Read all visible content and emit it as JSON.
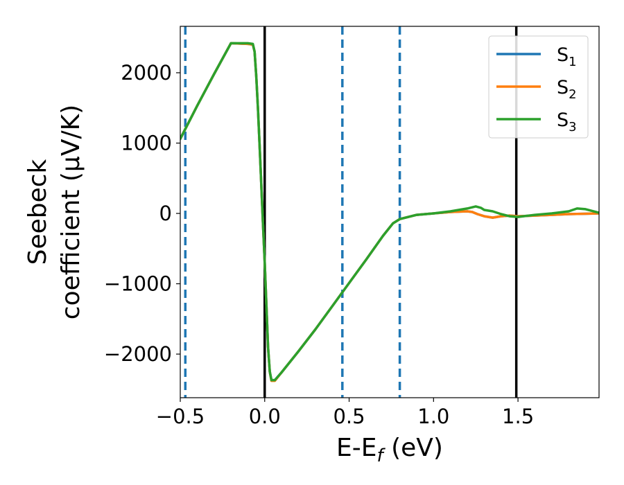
{
  "chart_data": {
    "type": "line",
    "xlabel_main": "E-E",
    "xlabel_sub": "f",
    "xlabel_unit": " (eV)",
    "ylabel_line1": "Seebeck",
    "ylabel_line2": "coefficient  (μV/K)",
    "xlim": [
      -0.5,
      1.98
    ],
    "ylim": [
      -2620,
      2660
    ],
    "x_ticks": [
      -0.5,
      0.0,
      0.5,
      1.0,
      1.5
    ],
    "x_tick_labels": [
      "−0.5",
      "0.0",
      "0.5",
      "1.0",
      "1.5"
    ],
    "y_ticks": [
      2000,
      1000,
      0,
      -1000,
      -2000
    ],
    "y_tick_labels": [
      "2000",
      "1000",
      "0",
      "−1000",
      "−2000"
    ],
    "vertical_lines": [
      {
        "x": 0.0,
        "style": "solid",
        "color": "#000000"
      },
      {
        "x": 1.49,
        "style": "solid",
        "color": "#000000"
      },
      {
        "x": -0.47,
        "style": "dashed",
        "color": "#1f77b4"
      },
      {
        "x": 0.46,
        "style": "dashed",
        "color": "#1f77b4"
      },
      {
        "x": 0.8,
        "style": "dashed",
        "color": "#1f77b4"
      }
    ],
    "legend_position": "top-right",
    "series": [
      {
        "name": "S",
        "sub": "1",
        "color": "#1f77b4",
        "points": [
          [
            -0.5,
            1060
          ],
          [
            -0.4,
            1530
          ],
          [
            -0.3,
            1980
          ],
          [
            -0.2,
            2420
          ],
          [
            -0.1,
            2410
          ],
          [
            -0.07,
            2400
          ],
          [
            -0.06,
            2300
          ],
          [
            -0.05,
            1950
          ],
          [
            -0.04,
            1500
          ],
          [
            -0.03,
            950
          ],
          [
            -0.02,
            400
          ],
          [
            -0.01,
            -150
          ],
          [
            0.0,
            -700
          ],
          [
            0.01,
            -1300
          ],
          [
            0.02,
            -1900
          ],
          [
            0.03,
            -2250
          ],
          [
            0.04,
            -2370
          ],
          [
            0.06,
            -2370
          ],
          [
            0.1,
            -2260
          ],
          [
            0.2,
            -1960
          ],
          [
            0.3,
            -1650
          ],
          [
            0.4,
            -1320
          ],
          [
            0.5,
            -990
          ],
          [
            0.6,
            -660
          ],
          [
            0.7,
            -320
          ],
          [
            0.76,
            -140
          ],
          [
            0.8,
            -80
          ],
          [
            0.9,
            -20
          ],
          [
            1.0,
            0
          ],
          [
            1.1,
            20
          ],
          [
            1.2,
            30
          ],
          [
            1.23,
            20
          ],
          [
            1.26,
            -10
          ],
          [
            1.3,
            -40
          ],
          [
            1.35,
            -60
          ],
          [
            1.4,
            -40
          ],
          [
            1.45,
            -30
          ],
          [
            1.5,
            -40
          ],
          [
            1.6,
            -30
          ],
          [
            1.7,
            -20
          ],
          [
            1.8,
            -10
          ],
          [
            1.9,
            -5
          ],
          [
            1.98,
            0
          ]
        ]
      },
      {
        "name": "S",
        "sub": "2",
        "color": "#ff7f0e",
        "points": [
          [
            -0.5,
            1060
          ],
          [
            -0.4,
            1530
          ],
          [
            -0.3,
            1980
          ],
          [
            -0.2,
            2420
          ],
          [
            -0.1,
            2410
          ],
          [
            -0.07,
            2400
          ],
          [
            -0.06,
            2300
          ],
          [
            -0.05,
            1950
          ],
          [
            -0.04,
            1500
          ],
          [
            -0.03,
            950
          ],
          [
            -0.02,
            400
          ],
          [
            -0.01,
            -150
          ],
          [
            0.0,
            -700
          ],
          [
            0.01,
            -1300
          ],
          [
            0.02,
            -1900
          ],
          [
            0.03,
            -2250
          ],
          [
            0.04,
            -2380
          ],
          [
            0.06,
            -2380
          ],
          [
            0.1,
            -2260
          ],
          [
            0.2,
            -1960
          ],
          [
            0.3,
            -1650
          ],
          [
            0.4,
            -1320
          ],
          [
            0.5,
            -990
          ],
          [
            0.6,
            -660
          ],
          [
            0.7,
            -320
          ],
          [
            0.76,
            -140
          ],
          [
            0.8,
            -80
          ],
          [
            0.9,
            -20
          ],
          [
            1.0,
            0
          ],
          [
            1.1,
            20
          ],
          [
            1.2,
            30
          ],
          [
            1.23,
            20
          ],
          [
            1.26,
            -10
          ],
          [
            1.3,
            -40
          ],
          [
            1.35,
            -60
          ],
          [
            1.4,
            -40
          ],
          [
            1.45,
            -30
          ],
          [
            1.5,
            -40
          ],
          [
            1.6,
            -30
          ],
          [
            1.7,
            -20
          ],
          [
            1.8,
            -10
          ],
          [
            1.9,
            -5
          ],
          [
            1.98,
            0
          ]
        ]
      },
      {
        "name": "S",
        "sub": "3",
        "color": "#2ca02c",
        "points": [
          [
            -0.5,
            1060
          ],
          [
            -0.4,
            1530
          ],
          [
            -0.3,
            1980
          ],
          [
            -0.2,
            2420
          ],
          [
            -0.1,
            2420
          ],
          [
            -0.07,
            2410
          ],
          [
            -0.06,
            2300
          ],
          [
            -0.05,
            1950
          ],
          [
            -0.04,
            1500
          ],
          [
            -0.03,
            950
          ],
          [
            -0.02,
            400
          ],
          [
            -0.01,
            -150
          ],
          [
            0.0,
            -700
          ],
          [
            0.01,
            -1300
          ],
          [
            0.02,
            -1900
          ],
          [
            0.03,
            -2250
          ],
          [
            0.04,
            -2370
          ],
          [
            0.06,
            -2370
          ],
          [
            0.1,
            -2260
          ],
          [
            0.2,
            -1960
          ],
          [
            0.3,
            -1650
          ],
          [
            0.4,
            -1320
          ],
          [
            0.5,
            -990
          ],
          [
            0.6,
            -660
          ],
          [
            0.7,
            -320
          ],
          [
            0.76,
            -140
          ],
          [
            0.8,
            -80
          ],
          [
            0.9,
            -20
          ],
          [
            1.0,
            0
          ],
          [
            1.1,
            30
          ],
          [
            1.2,
            70
          ],
          [
            1.25,
            100
          ],
          [
            1.28,
            80
          ],
          [
            1.3,
            50
          ],
          [
            1.35,
            30
          ],
          [
            1.4,
            -10
          ],
          [
            1.45,
            -40
          ],
          [
            1.5,
            -50
          ],
          [
            1.6,
            -20
          ],
          [
            1.7,
            0
          ],
          [
            1.8,
            30
          ],
          [
            1.85,
            70
          ],
          [
            1.9,
            60
          ],
          [
            1.98,
            10
          ]
        ]
      }
    ]
  }
}
